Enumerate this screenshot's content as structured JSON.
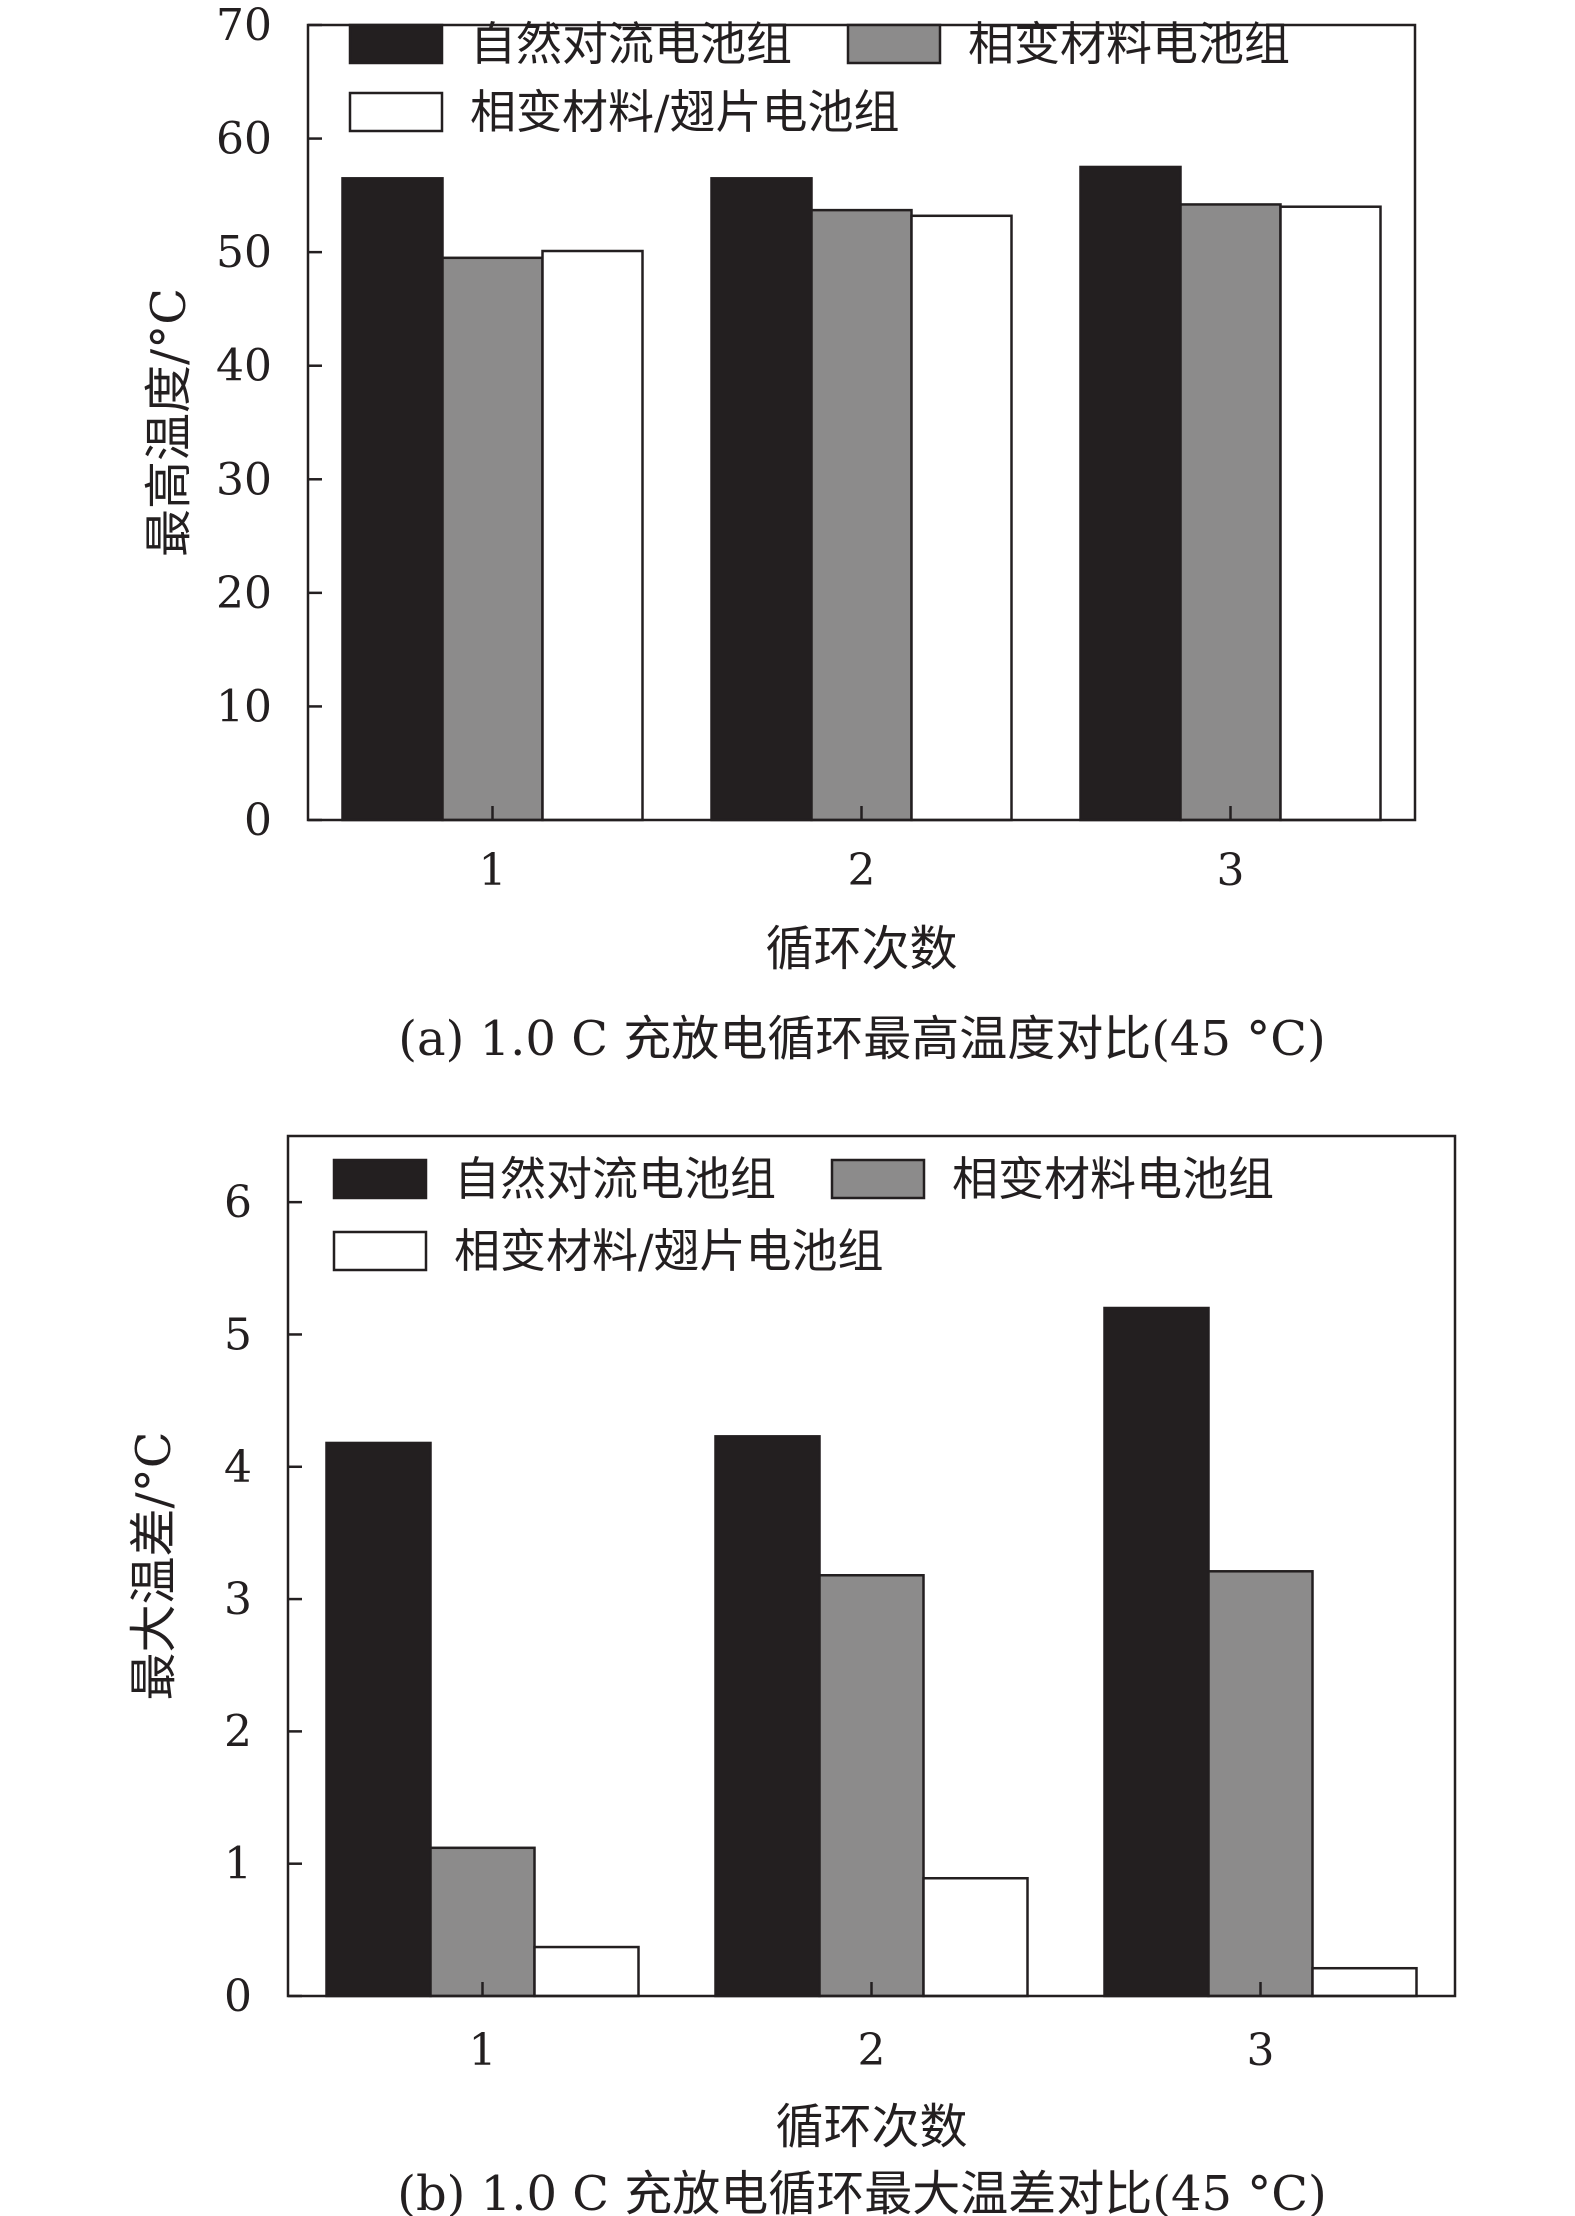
{
  "colors": {
    "natural_convection": "#231f20",
    "pcm": "#8c8b8b",
    "pcm_fin": "#ffffff",
    "axis": "#231f20"
  },
  "chart_data": [
    {
      "type": "bar",
      "caption": "(a) 1.0 C 充放电循环最高温度对比(45 °C)",
      "xlabel": "循环次数",
      "ylabel": "最高温度/°C",
      "categories": [
        "1",
        "2",
        "3"
      ],
      "ylim": [
        0,
        70
      ],
      "yticks": [
        0,
        10,
        20,
        30,
        40,
        50,
        60,
        70
      ],
      "legend_position": "top-left",
      "series": [
        {
          "name": "自然对流电池组",
          "values": [
            56.5,
            56.5,
            57.5
          ]
        },
        {
          "name": "相变材料电池组",
          "values": [
            49.5,
            53.7,
            54.2
          ]
        },
        {
          "name": "相变材料/翅片电池组",
          "values": [
            50.1,
            53.2,
            54.0
          ]
        }
      ]
    },
    {
      "type": "bar",
      "caption": "(b) 1.0 C 充放电循环最大温差对比(45 °C)",
      "xlabel": "循环次数",
      "ylabel": "最大温差/°C",
      "categories": [
        "1",
        "2",
        "3"
      ],
      "ylim": [
        0,
        6.5
      ],
      "yticks": [
        0,
        1,
        2,
        3,
        4,
        5,
        6
      ],
      "legend_position": "top-left",
      "series": [
        {
          "name": "自然对流电池组",
          "values": [
            4.18,
            4.23,
            5.2
          ]
        },
        {
          "name": "相变材料电池组",
          "values": [
            1.12,
            3.18,
            3.21
          ]
        },
        {
          "name": "相变材料/翅片电池组",
          "values": [
            0.37,
            0.89,
            0.21
          ]
        }
      ]
    }
  ]
}
